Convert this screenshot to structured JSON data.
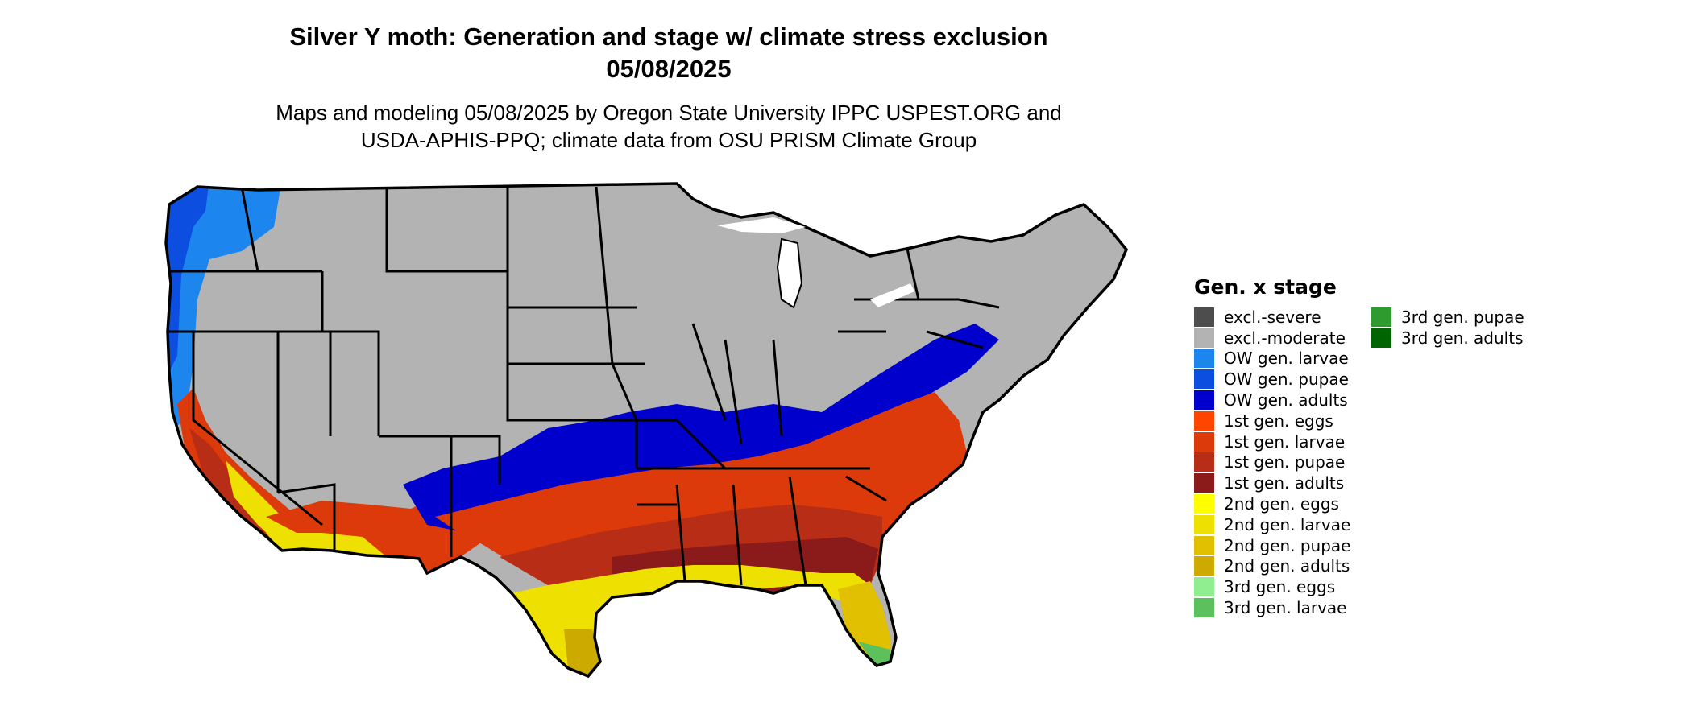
{
  "title_line1": "Silver Y moth: Generation and stage w/ climate stress exclusion",
  "title_line2": "05/08/2025",
  "subtitle_line1": "Maps and modeling 05/08/2025 by Oregon State University IPPC USPEST.ORG and",
  "subtitle_line2": "USDA-APHIS-PPQ; climate data from OSU PRISM Climate Group",
  "legend": {
    "title": "Gen. x stage",
    "items": [
      {
        "label": "excl.-severe",
        "color": "#4d4d4d"
      },
      {
        "label": "excl.-moderate",
        "color": "#b3b3b3"
      },
      {
        "label": "OW gen. larvae",
        "color": "#1c86ee"
      },
      {
        "label": "OW gen. pupae",
        "color": "#0c4ee0"
      },
      {
        "label": "OW gen. adults",
        "color": "#0000cd"
      },
      {
        "label": "1st gen. eggs",
        "color": "#ff4500"
      },
      {
        "label": "1st gen. larvae",
        "color": "#dd3a0c"
      },
      {
        "label": "1st gen. pupae",
        "color": "#b82d15"
      },
      {
        "label": "1st gen. adults",
        "color": "#8b1a1a"
      },
      {
        "label": "2nd gen. eggs",
        "color": "#ffff00"
      },
      {
        "label": "2nd gen. larvae",
        "color": "#eee000"
      },
      {
        "label": "2nd gen. pupae",
        "color": "#e0c000"
      },
      {
        "label": "2nd gen. adults",
        "color": "#cdaa00"
      },
      {
        "label": "3rd gen. eggs",
        "color": "#90ee90"
      },
      {
        "label": "3rd gen. larvae",
        "color": "#5cc05c"
      },
      {
        "label": "3rd gen. pupae",
        "color": "#2e9b2e"
      },
      {
        "label": "3rd gen. adults",
        "color": "#006400"
      }
    ]
  },
  "map_colors": {
    "border": "#000000",
    "lakes": "#ffffff"
  }
}
